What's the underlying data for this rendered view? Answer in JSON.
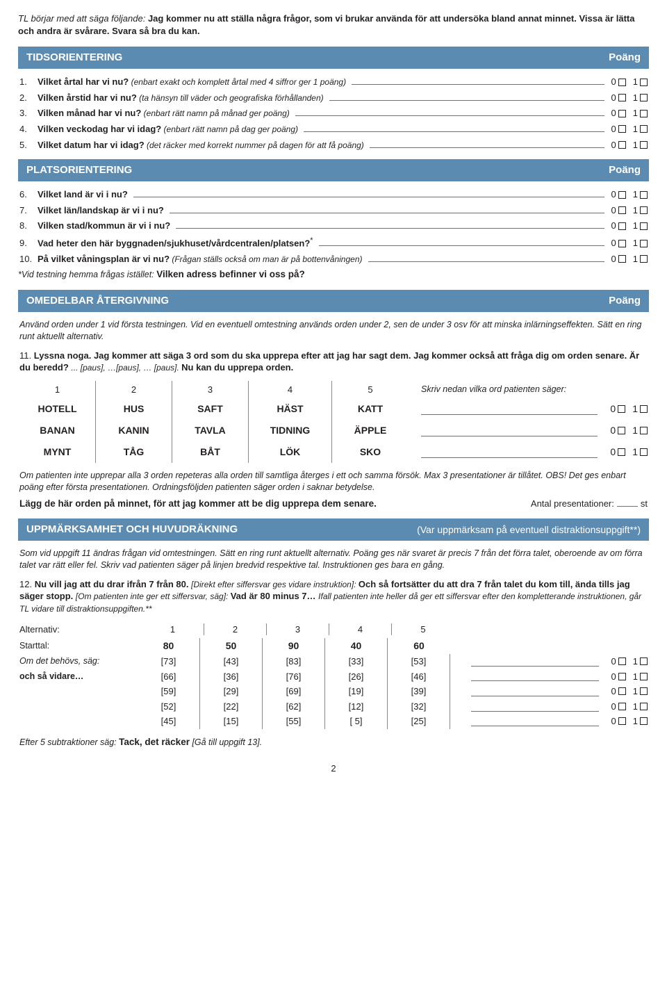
{
  "intro": {
    "prefix": "TL börjar med att säga följande: ",
    "bold1": "Jag kommer nu att ställa några frågor, som vi brukar använda för att undersöka bland annat minnet. Vissa är lätta och andra är svårare. Svara så bra du kan."
  },
  "colors": {
    "section_bg": "#5c8bb2",
    "section_fg": "#ffffff",
    "text": "#231f20"
  },
  "poang_label": "Poäng",
  "score0": "0",
  "score1": "1",
  "sections": {
    "tids": {
      "title": "TIDSORIENTERING",
      "items": [
        {
          "num": "1.",
          "bold": "Vilket årtal har vi nu?",
          "ital": " (enbart exakt och komplett årtal med 4 siffror ger 1 poäng)"
        },
        {
          "num": "2.",
          "bold": "Vilken årstid har vi nu?",
          "ital": " (ta hänsyn till väder och geografiska förhållanden)"
        },
        {
          "num": "3.",
          "bold": "Vilken månad har vi nu?",
          "ital": " (enbart rätt namn på månad ger poäng)"
        },
        {
          "num": "4.",
          "bold": "Vilken veckodag har vi idag?",
          "ital": " (enbart rätt namn på dag ger poäng)"
        },
        {
          "num": "5.",
          "bold": "Vilket datum har vi idag?",
          "ital": " (det räcker med korrekt nummer på dagen för att få poäng)"
        }
      ]
    },
    "plats": {
      "title": "PLATSORIENTERING",
      "items": [
        {
          "num": "6.",
          "bold": "Vilket land är vi i nu?",
          "ital": ""
        },
        {
          "num": "7.",
          "bold": "Vilket län/landskap är vi i nu?",
          "ital": ""
        },
        {
          "num": "8.",
          "bold": "Vilken stad/kommun är vi i nu?",
          "ital": ""
        },
        {
          "num": "9.",
          "bold": "Vad heter den här byggnaden/sjukhuset/vårdcentralen/platsen?",
          "sup": "*",
          "ital": ""
        },
        {
          "num": "10.",
          "bold": "På vilket våningsplan är vi nu?",
          "ital": " (Frågan ställs också om man är på bottenvåningen)"
        }
      ],
      "footnote_prefix": "*Vid testning hemma frågas istället: ",
      "footnote_bold": "Vilken adress befinner vi oss på?"
    },
    "omed": {
      "title": "OMEDELBAR ÅTERGIVNING",
      "instr": "Använd orden under 1 vid första testningen. Vid en eventuell omtestning används orden under 2, sen de under 3 osv för att minska inlärningseffekten. Sätt en ring runt aktuellt alternativ.",
      "q11_num": "11.",
      "q11_bold1": "Lyssna noga. Jag kommer att säga 3 ord som du ska upprepa efter att jag har sagt dem. Jag kommer också att fråga dig om orden senare. Är du beredd?",
      "q11_pause": "... [paus], …[paus], … [paus]. ",
      "q11_bold2": "Nu kan du upprepa orden.",
      "cols": [
        "1",
        "2",
        "3",
        "4",
        "5"
      ],
      "skriv": "Skriv nedan vilka ord patienten säger:",
      "rows": [
        [
          "HOTELL",
          "HUS",
          "SAFT",
          "HÄST",
          "KATT"
        ],
        [
          "BANAN",
          "KANIN",
          "TAVLA",
          "TIDNING",
          "ÄPPLE"
        ],
        [
          "MYNT",
          "TÅG",
          "BÅT",
          "LÖK",
          "SKO"
        ]
      ],
      "after": "Om patienten inte upprepar alla 3 orden repeteras alla orden till samtliga återges i ett och samma försök. Max 3 presentationer är tillåtet. OBS! Det ges enbart poäng efter första presentationen. Ordningsföljden patienten säger orden i saknar betydelse.",
      "memo": "Lägg de här orden på minnet, för att jag kommer att be dig upprepa dem senare.",
      "pres_label": "Antal presentationer:",
      "pres_suffix": "st"
    },
    "uppm": {
      "title": "UPPMÄRKSAMHET OCH HUVUDRÄKNING",
      "subtitle": "(Var uppmärksam på eventuell distraktionsuppgift**)",
      "instr": "Som vid uppgift 11 ändras frågan vid omtestningen. Sätt en ring runt aktuellt alternativ. Poäng ges när svaret är precis 7 från det förra talet, oberoende av om förra talet var rätt eller fel. Skriv vad patienten säger på linjen bredvid respektive tal. Instruktionen ges bara en gång.",
      "q12_num": "12.",
      "q12_bold1": "Nu vill jag att du drar ifrån 7 från 80.",
      "q12_ital1": " [Direkt efter siffersvar ges vidare instruktion]: ",
      "q12_bold2": "Och så fortsätter du att dra 7 från talet du kom till, ända tills jag säger stopp.",
      "q12_ital2": " [Om patienten inte ger ett siffersvar, säg]: ",
      "q12_bold3": "Vad är 80 minus 7…",
      "q12_ital3": "Ifall patienten inte heller då ger ett siffersvar efter den kompletterande instruktionen, går TL vidare till distraktionsuppgiften.**",
      "alt_label": "Alternativ:",
      "alt_nums": [
        "1",
        "2",
        "3",
        "4",
        "5"
      ],
      "start_label": "Starttal:",
      "need_label_i": "Om det behövs, säg:",
      "need_label_b": "och så vidare…",
      "start_row": [
        "80",
        "50",
        "90",
        "40",
        "60"
      ],
      "rows": [
        [
          "[73]",
          "[43]",
          "[83]",
          "[33]",
          "[53]"
        ],
        [
          "[66]",
          "[36]",
          "[76]",
          "[26]",
          "[46]"
        ],
        [
          "[59]",
          "[29]",
          "[69]",
          "[19]",
          "[39]"
        ],
        [
          "[52]",
          "[22]",
          "[62]",
          "[12]",
          "[32]"
        ],
        [
          "[45]",
          "[15]",
          "[55]",
          "[ 5]",
          "[25]"
        ]
      ],
      "after5_prefix": "Efter 5 subtraktioner säg: ",
      "after5_bold": "Tack, det räcker",
      "after5_suffix": " [Gå till uppgift 13]."
    }
  },
  "page_num": "2"
}
